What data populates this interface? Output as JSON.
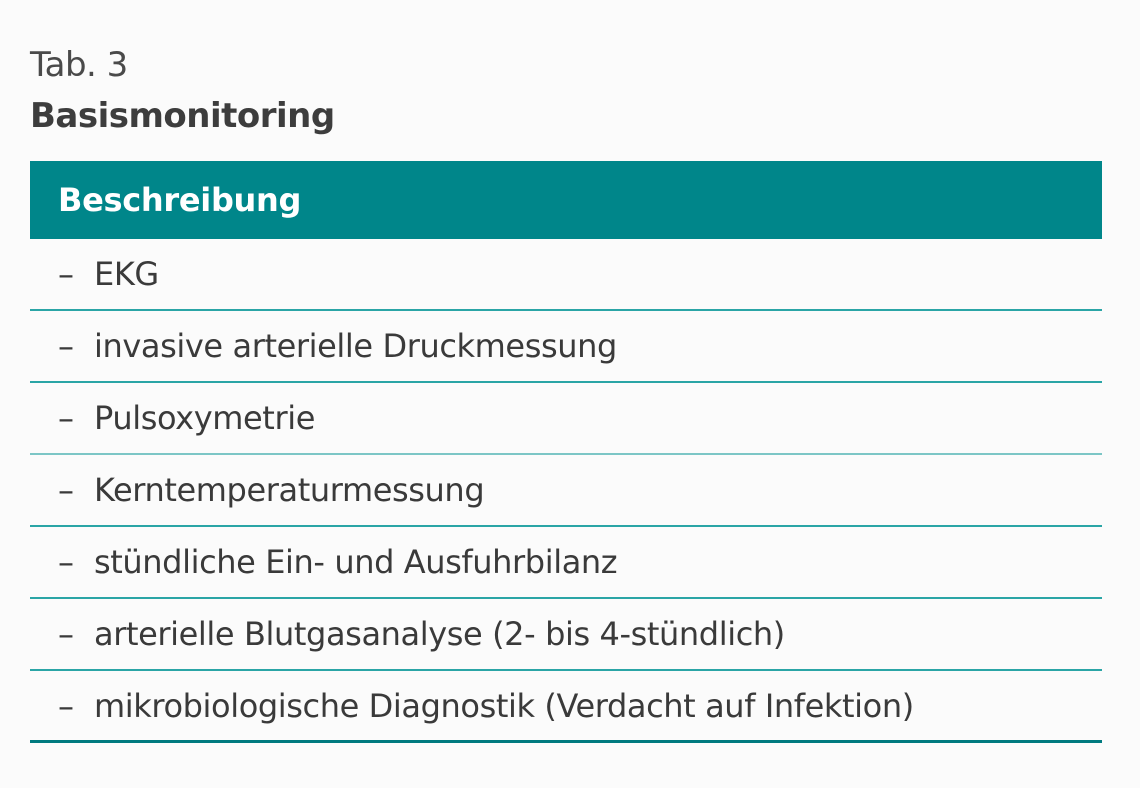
{
  "table": {
    "number": "Tab. 3",
    "title": "Basismonitoring",
    "header": "Beschreibung",
    "rows": [
      {
        "marker": "–",
        "text": "EKG"
      },
      {
        "marker": "–",
        "text": "invasive arterielle Druckmessung"
      },
      {
        "marker": "–",
        "text": "Pulsoxymetrie"
      },
      {
        "marker": "–",
        "text": "Kerntemperaturmessung"
      },
      {
        "marker": "–",
        "text": "stündliche Ein- und Ausfuhrbilanz"
      },
      {
        "marker": "–",
        "text": "arterielle Blutgasanalyse (2- bis 4-stündlich)"
      },
      {
        "marker": "–",
        "text": "mikrobiologische Diagnostik (Verdacht auf Infektion)"
      }
    ]
  },
  "colors": {
    "header_background": "#00868a",
    "header_text": "#ffffff",
    "row_divider": "#2aa5a6",
    "body_text": "#3a3a3a"
  }
}
